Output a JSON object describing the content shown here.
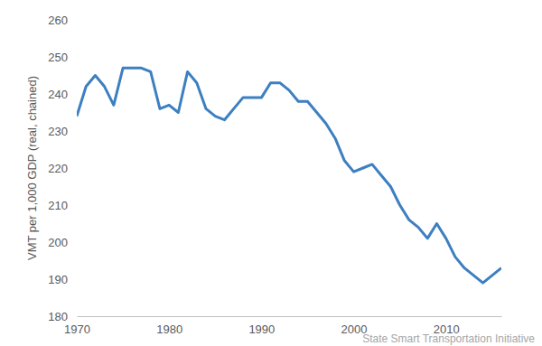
{
  "chart_data": {
    "type": "line",
    "y_label": "VMT per 1,000 GDP (real, chained)",
    "source": "State Smart Transportation Initiative",
    "x": [
      1970,
      1971,
      1972,
      1973,
      1974,
      1975,
      1976,
      1977,
      1978,
      1979,
      1980,
      1981,
      1982,
      1983,
      1984,
      1985,
      1986,
      1987,
      1988,
      1989,
      1990,
      1991,
      1992,
      1993,
      1994,
      1995,
      1996,
      1997,
      1998,
      1999,
      2000,
      2001,
      2002,
      2003,
      2004,
      2005,
      2006,
      2007,
      2008,
      2009,
      2010,
      2011,
      2012,
      2013,
      2014,
      2015,
      2016
    ],
    "values": [
      234,
      242,
      245,
      242,
      237,
      247,
      247,
      247,
      246,
      236,
      237,
      235,
      246,
      243,
      236,
      234,
      233,
      236,
      239,
      239,
      239,
      243,
      243,
      241,
      238,
      238,
      235,
      232,
      228,
      222,
      219,
      220,
      221,
      218,
      215,
      210,
      206,
      204,
      201,
      205,
      201,
      196,
      193,
      191,
      189,
      191,
      193
    ],
    "color": "#3d7fc1",
    "xlim": [
      1970,
      2016
    ],
    "xticks": [
      1970,
      1980,
      1990,
      2000,
      2010
    ],
    "ylim": [
      180,
      260
    ],
    "yticks": [
      180,
      190,
      200,
      210,
      220,
      230,
      240,
      250,
      260
    ],
    "grid": false
  }
}
